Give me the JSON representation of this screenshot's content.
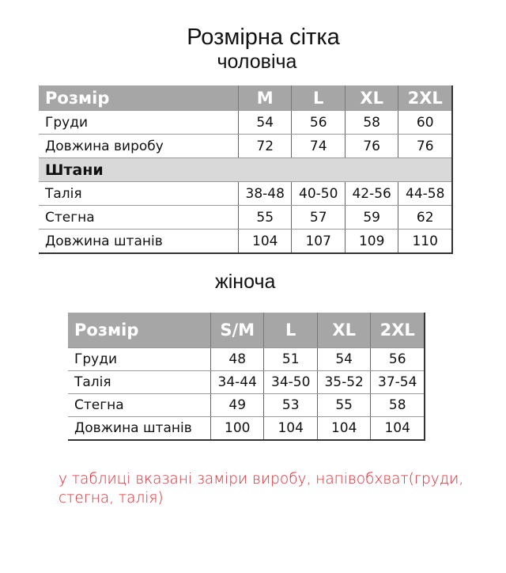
{
  "title": "Розмірна сітка",
  "men": {
    "subtitle": "чоловіча",
    "header": [
      "Розмір",
      "M",
      "L",
      "XL",
      "2XL"
    ],
    "rows": [
      [
        "Груди",
        "54",
        "56",
        "58",
        "60"
      ],
      [
        "Довжина виробу",
        "72",
        "74",
        "76",
        "76"
      ]
    ],
    "section": "Штани",
    "rows2": [
      [
        "Талія",
        "38-48",
        "40-50",
        "42-56",
        "44-58"
      ],
      [
        "Стегна",
        "55",
        "57",
        "59",
        "62"
      ],
      [
        "Довжина штанів",
        "104",
        "107",
        "109",
        "110"
      ]
    ]
  },
  "women": {
    "subtitle": "жіноча",
    "header": [
      "Розмір",
      "S/M",
      "L",
      "XL",
      "2XL"
    ],
    "rows": [
      [
        "Груди",
        "48",
        "51",
        "54",
        "56"
      ],
      [
        "Талія",
        "34-44",
        "34-50",
        "35-52",
        "37-54"
      ],
      [
        "Стегна",
        "49",
        "53",
        "55",
        "58"
      ],
      [
        "Довжина штанів",
        "100",
        "104",
        "104",
        "104"
      ]
    ]
  },
  "note": "у таблиці вказані заміри виробу, напівобхват(груди, стегна, талія)",
  "colors": {
    "header_bg": "#a6a6a6",
    "section_bg": "#d9d9d9",
    "note": "#e8202a"
  }
}
